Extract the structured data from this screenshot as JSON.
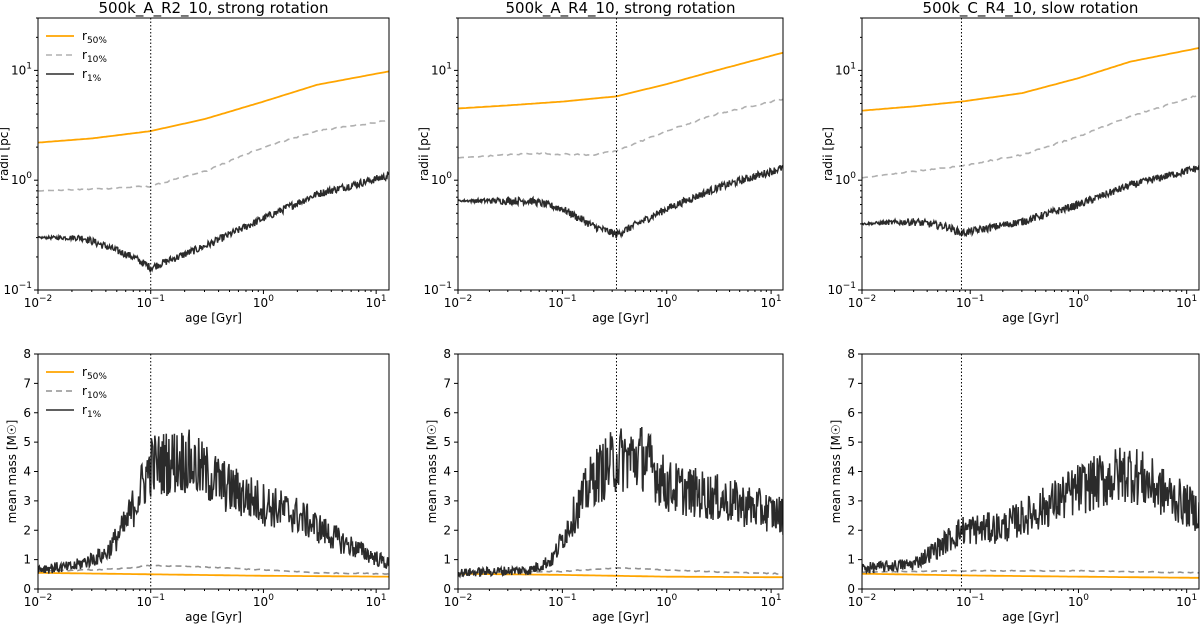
{
  "colors": {
    "r50": "#ffa500",
    "r10": "#b0b0b0",
    "r10_mass": "#909090",
    "r1": "#2b2b2b"
  },
  "legend": [
    {
      "base": "r",
      "sub": "50%"
    },
    {
      "base": "r",
      "sub": "10%"
    },
    {
      "base": "r",
      "sub": "1%"
    }
  ],
  "chart_data": [
    {
      "type": "line",
      "title": "500k_A_R2_10, strong rotation",
      "xlabel": "age [Gyr]",
      "ylabel": "radii [pc]",
      "xscale": "log",
      "yscale": "log",
      "xlim": [
        0.01,
        13
      ],
      "ylim": [
        0.1,
        30
      ],
      "xticks": [
        "10^-2",
        "10^-1",
        "10^0",
        "10^1"
      ],
      "yticks": [
        "10^-1",
        "10^0",
        "10^1"
      ],
      "vline": 0.1,
      "legend": true,
      "series": [
        {
          "name": "r50%",
          "points": [
            [
              0.01,
              2.2
            ],
            [
              0.03,
              2.4
            ],
            [
              0.1,
              2.8
            ],
            [
              0.3,
              3.6
            ],
            [
              1,
              5.2
            ],
            [
              3,
              7.4
            ],
            [
              13,
              9.8
            ]
          ],
          "noise": 0
        },
        {
          "name": "r10%",
          "points": [
            [
              0.01,
              0.8
            ],
            [
              0.03,
              0.83
            ],
            [
              0.1,
              0.88
            ],
            [
              0.3,
              1.2
            ],
            [
              1,
              2.0
            ],
            [
              3,
              2.8
            ],
            [
              13,
              3.5
            ]
          ],
          "noise": 0.015
        },
        {
          "name": "r1%",
          "points": [
            [
              0.01,
              0.3
            ],
            [
              0.025,
              0.3
            ],
            [
              0.04,
              0.25
            ],
            [
              0.07,
              0.2
            ],
            [
              0.1,
              0.16
            ],
            [
              0.3,
              0.25
            ],
            [
              1,
              0.45
            ],
            [
              3,
              0.75
            ],
            [
              13,
              1.1
            ]
          ],
          "noise": 0.08
        }
      ]
    },
    {
      "type": "line",
      "title": "500k_A_R4_10, strong rotation",
      "xlabel": "age [Gyr]",
      "ylabel": "",
      "xscale": "log",
      "yscale": "log",
      "xlim": [
        0.01,
        13
      ],
      "ylim": [
        0.1,
        30
      ],
      "xticks": [
        "10^-2",
        "10^-1",
        "10^0",
        "10^1"
      ],
      "yticks": [
        "10^-1",
        "10^0",
        "10^1"
      ],
      "vline": 0.33,
      "legend": false,
      "series": [
        {
          "name": "r50%",
          "points": [
            [
              0.01,
              4.5
            ],
            [
              0.03,
              4.8
            ],
            [
              0.1,
              5.2
            ],
            [
              0.33,
              5.8
            ],
            [
              1,
              7.5
            ],
            [
              3,
              10
            ],
            [
              13,
              14.5
            ]
          ],
          "noise": 0
        },
        {
          "name": "r10%",
          "points": [
            [
              0.01,
              1.6
            ],
            [
              0.05,
              1.75
            ],
            [
              0.2,
              1.7
            ],
            [
              0.33,
              1.85
            ],
            [
              1,
              2.8
            ],
            [
              3,
              4
            ],
            [
              13,
              5.5
            ]
          ],
          "noise": 0.015
        },
        {
          "name": "r1%",
          "points": [
            [
              0.01,
              0.65
            ],
            [
              0.05,
              0.65
            ],
            [
              0.1,
              0.55
            ],
            [
              0.2,
              0.38
            ],
            [
              0.33,
              0.32
            ],
            [
              1,
              0.55
            ],
            [
              3,
              0.85
            ],
            [
              13,
              1.3
            ]
          ],
          "noise": 0.08
        }
      ]
    },
    {
      "type": "line",
      "title": "500k_C_R4_10, slow rotation",
      "xlabel": "age [Gyr]",
      "ylabel": "radii [pc]",
      "xscale": "log",
      "yscale": "log",
      "xlim": [
        0.01,
        13
      ],
      "ylim": [
        0.1,
        30
      ],
      "xticks": [
        "10^-2",
        "10^-1",
        "10^0",
        "10^1"
      ],
      "yticks": [
        "10^-1",
        "10^0",
        "10^1"
      ],
      "vline": 0.083,
      "legend": false,
      "series": [
        {
          "name": "r50%",
          "points": [
            [
              0.01,
              4.3
            ],
            [
              0.03,
              4.7
            ],
            [
              0.083,
              5.2
            ],
            [
              0.3,
              6.2
            ],
            [
              1,
              8.5
            ],
            [
              3,
              12
            ],
            [
              13,
              16
            ]
          ],
          "noise": 0
        },
        {
          "name": "r10%",
          "points": [
            [
              0.01,
              1.05
            ],
            [
              0.03,
              1.2
            ],
            [
              0.083,
              1.35
            ],
            [
              0.3,
              1.7
            ],
            [
              1,
              2.5
            ],
            [
              3,
              3.8
            ],
            [
              13,
              6
            ]
          ],
          "noise": 0.015
        },
        {
          "name": "r1%",
          "points": [
            [
              0.01,
              0.4
            ],
            [
              0.03,
              0.42
            ],
            [
              0.06,
              0.38
            ],
            [
              0.083,
              0.33
            ],
            [
              0.3,
              0.42
            ],
            [
              1,
              0.6
            ],
            [
              3,
              0.9
            ],
            [
              13,
              1.3
            ]
          ],
          "noise": 0.08
        }
      ]
    },
    {
      "type": "line",
      "title": "",
      "xlabel": "age [Gyr]",
      "ylabel": "mean mass [M☉]",
      "xscale": "log",
      "yscale": "linear",
      "xlim": [
        0.01,
        13
      ],
      "ylim": [
        0,
        8
      ],
      "xticks": [
        "10^-2",
        "10^-1",
        "10^0",
        "10^1"
      ],
      "yticks": [
        "0",
        "1",
        "2",
        "3",
        "4",
        "5",
        "6",
        "7",
        "8"
      ],
      "vline": 0.1,
      "legend": true,
      "series": [
        {
          "name": "r50%",
          "points": [
            [
              0.01,
              0.55
            ],
            [
              0.1,
              0.5
            ],
            [
              1,
              0.45
            ],
            [
              13,
              0.42
            ]
          ],
          "noise": 0
        },
        {
          "name": "r10%",
          "points": [
            [
              0.01,
              0.6
            ],
            [
              0.05,
              0.68
            ],
            [
              0.1,
              0.8
            ],
            [
              0.3,
              0.75
            ],
            [
              1,
              0.65
            ],
            [
              3,
              0.55
            ],
            [
              13,
              0.52
            ]
          ],
          "noise": 0.015
        },
        {
          "name": "r1%",
          "points": [
            [
              0.01,
              0.7
            ],
            [
              0.02,
              0.75
            ],
            [
              0.04,
              1.2
            ],
            [
              0.06,
              2.2
            ],
            [
              0.08,
              3.3
            ],
            [
              0.1,
              4.2
            ],
            [
              0.2,
              4.4
            ],
            [
              0.5,
              3.4
            ],
            [
              1,
              2.9
            ],
            [
              2,
              2.5
            ],
            [
              5,
              1.6
            ],
            [
              13,
              0.85
            ]
          ],
          "noise": 0.12
        }
      ]
    },
    {
      "type": "line",
      "title": "",
      "xlabel": "age [Gyr]",
      "ylabel": "mean mass [M☉]",
      "xscale": "log",
      "yscale": "linear",
      "xlim": [
        0.01,
        13
      ],
      "ylim": [
        0,
        8
      ],
      "xticks": [
        "10^-2",
        "10^-1",
        "10^0",
        "10^1"
      ],
      "yticks": [
        "0",
        "1",
        "2",
        "3",
        "4",
        "5",
        "6",
        "7",
        "8"
      ],
      "vline": 0.33,
      "legend": false,
      "series": [
        {
          "name": "r50%",
          "points": [
            [
              0.01,
              0.52
            ],
            [
              0.1,
              0.48
            ],
            [
              1,
              0.42
            ],
            [
              13,
              0.4
            ]
          ],
          "noise": 0
        },
        {
          "name": "r10%",
          "points": [
            [
              0.01,
              0.55
            ],
            [
              0.1,
              0.6
            ],
            [
              0.33,
              0.72
            ],
            [
              1,
              0.65
            ],
            [
              3,
              0.58
            ],
            [
              13,
              0.52
            ]
          ],
          "noise": 0.015
        },
        {
          "name": "r1%",
          "points": [
            [
              0.01,
              0.55
            ],
            [
              0.05,
              0.65
            ],
            [
              0.08,
              1.0
            ],
            [
              0.12,
              2.3
            ],
            [
              0.2,
              3.8
            ],
            [
              0.33,
              4.4
            ],
            [
              0.6,
              4.5
            ],
            [
              1,
              3.5
            ],
            [
              3,
              3.1
            ],
            [
              13,
              2.5
            ]
          ],
          "noise": 0.12
        }
      ]
    },
    {
      "type": "line",
      "title": "",
      "xlabel": "age [Gyr]",
      "ylabel": "mean mass [M☉]",
      "xscale": "log",
      "yscale": "linear",
      "xlim": [
        0.01,
        13
      ],
      "ylim": [
        0,
        8
      ],
      "xticks": [
        "10^-2",
        "10^-1",
        "10^0",
        "10^1"
      ],
      "yticks": [
        "0",
        "1",
        "2",
        "3",
        "4",
        "5",
        "6",
        "7",
        "8"
      ],
      "vline": 0.083,
      "legend": false,
      "series": [
        {
          "name": "r50%",
          "points": [
            [
              0.01,
              0.52
            ],
            [
              0.1,
              0.46
            ],
            [
              1,
              0.42
            ],
            [
              13,
              0.38
            ]
          ],
          "noise": 0
        },
        {
          "name": "r10%",
          "points": [
            [
              0.01,
              0.58
            ],
            [
              0.1,
              0.62
            ],
            [
              1,
              0.62
            ],
            [
              13,
              0.55
            ]
          ],
          "noise": 0.015
        },
        {
          "name": "r1%",
          "points": [
            [
              0.01,
              0.7
            ],
            [
              0.03,
              0.85
            ],
            [
              0.05,
              1.4
            ],
            [
              0.083,
              2.0
            ],
            [
              0.2,
              2.1
            ],
            [
              0.5,
              2.8
            ],
            [
              1,
              3.4
            ],
            [
              3,
              4.0
            ],
            [
              6,
              3.3
            ],
            [
              13,
              2.6
            ]
          ],
          "noise": 0.12
        }
      ]
    }
  ]
}
